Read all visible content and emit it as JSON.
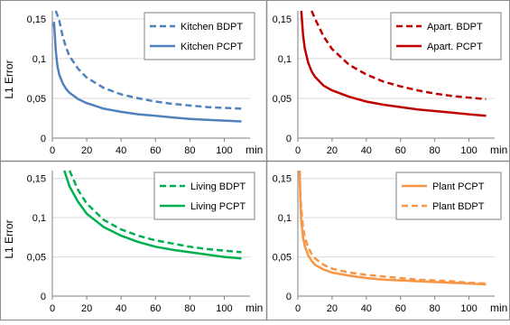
{
  "figure": {
    "ylabel": "L1 Error",
    "xunit": "min"
  },
  "chart_data": [
    {
      "type": "line",
      "id": "kitchen",
      "xlim": [
        0,
        115
      ],
      "ylim": [
        0,
        0.16
      ],
      "xticks": [
        "0",
        "20",
        "40",
        "60",
        "80",
        "100"
      ],
      "yticks": [
        "0",
        "0,05",
        "0,1",
        "0,15"
      ],
      "ytick_values": [
        0,
        0.05,
        0.1,
        0.15
      ],
      "xtick_values": [
        0,
        20,
        40,
        60,
        80,
        100
      ],
      "ylabel": "L1 Error",
      "xlabel": "min",
      "legend": "top-right",
      "grid": "horizontal",
      "series": [
        {
          "name": "Kitchen BDPT",
          "color": "#4f81bd",
          "dash": "dashed",
          "x": [
            2,
            4,
            6,
            8,
            10,
            15,
            20,
            30,
            40,
            50,
            60,
            70,
            80,
            90,
            100,
            110
          ],
          "y": [
            0.16,
            0.148,
            0.128,
            0.114,
            0.103,
            0.087,
            0.076,
            0.063,
            0.055,
            0.05,
            0.046,
            0.043,
            0.041,
            0.039,
            0.038,
            0.037
          ]
        },
        {
          "name": "Kitchen PCPT",
          "color": "#4f81bd",
          "dash": "solid",
          "x": [
            0.5,
            1,
            2,
            3,
            4,
            6,
            8,
            10,
            15,
            20,
            30,
            40,
            50,
            60,
            70,
            80,
            90,
            100,
            110
          ],
          "y": [
            0.14,
            0.145,
            0.11,
            0.09,
            0.08,
            0.069,
            0.062,
            0.057,
            0.049,
            0.044,
            0.037,
            0.033,
            0.03,
            0.028,
            0.026,
            0.024,
            0.023,
            0.022,
            0.021
          ]
        }
      ]
    },
    {
      "type": "line",
      "id": "apartment",
      "xlim": [
        0,
        115
      ],
      "ylim": [
        0,
        0.16
      ],
      "xticks": [
        "0",
        "20",
        "40",
        "60",
        "80",
        "100"
      ],
      "yticks": [
        "0",
        "0,05",
        "0,1",
        "0,15"
      ],
      "ytick_values": [
        0,
        0.05,
        0.1,
        0.15
      ],
      "xtick_values": [
        0,
        20,
        40,
        60,
        80,
        100
      ],
      "xlabel": "min",
      "legend": "top-right",
      "grid": "horizontal",
      "series": [
        {
          "name": "Apart. BDPT",
          "color": "#c00000",
          "dash": "dashed",
          "x": [
            8,
            10,
            15,
            20,
            30,
            40,
            50,
            60,
            70,
            80,
            90,
            100,
            110
          ],
          "y": [
            0.16,
            0.15,
            0.128,
            0.112,
            0.092,
            0.08,
            0.071,
            0.065,
            0.06,
            0.056,
            0.053,
            0.051,
            0.049
          ]
        },
        {
          "name": "Apart. PCPT",
          "color": "#c00000",
          "dash": "solid",
          "x": [
            2,
            3,
            4,
            6,
            8,
            10,
            15,
            20,
            30,
            40,
            50,
            60,
            70,
            80,
            90,
            100,
            110
          ],
          "y": [
            0.16,
            0.13,
            0.113,
            0.095,
            0.084,
            0.077,
            0.066,
            0.06,
            0.052,
            0.046,
            0.042,
            0.039,
            0.036,
            0.034,
            0.032,
            0.03,
            0.028
          ]
        }
      ]
    },
    {
      "type": "line",
      "id": "living",
      "xlim": [
        0,
        115
      ],
      "ylim": [
        0,
        0.16
      ],
      "xticks": [
        "0",
        "20",
        "40",
        "60",
        "80",
        "100"
      ],
      "yticks": [
        "0",
        "0,05",
        "0,1",
        "0,15"
      ],
      "ytick_values": [
        0,
        0.05,
        0.1,
        0.15
      ],
      "xtick_values": [
        0,
        20,
        40,
        60,
        80,
        100
      ],
      "ylabel": "L1 Error",
      "xlabel": "min",
      "legend": "top-right",
      "grid": "horizontal",
      "series": [
        {
          "name": "Living BDPT",
          "color": "#00b050",
          "dash": "dashed",
          "x": [
            10,
            15,
            20,
            30,
            40,
            50,
            60,
            70,
            80,
            90,
            100,
            110
          ],
          "y": [
            0.16,
            0.135,
            0.118,
            0.097,
            0.085,
            0.077,
            0.071,
            0.067,
            0.063,
            0.06,
            0.058,
            0.056
          ]
        },
        {
          "name": "Living PCPT",
          "color": "#00b050",
          "dash": "solid",
          "x": [
            7,
            10,
            15,
            20,
            30,
            40,
            50,
            60,
            70,
            80,
            90,
            100,
            110
          ],
          "y": [
            0.16,
            0.14,
            0.12,
            0.105,
            0.088,
            0.077,
            0.069,
            0.063,
            0.059,
            0.056,
            0.053,
            0.05,
            0.048
          ]
        }
      ]
    },
    {
      "type": "line",
      "id": "plant",
      "xlim": [
        0,
        115
      ],
      "ylim": [
        0,
        0.16
      ],
      "xticks": [
        "0",
        "20",
        "40",
        "60",
        "80",
        "100"
      ],
      "yticks": [
        "0",
        "0,05",
        "0,1",
        "0,15"
      ],
      "ytick_values": [
        0,
        0.05,
        0.1,
        0.15
      ],
      "xtick_values": [
        0,
        20,
        40,
        60,
        80,
        100
      ],
      "xlabel": "min",
      "legend": "top-right",
      "grid": "horizontal",
      "series": [
        {
          "name": "Plant PCPT",
          "color": "#f79646",
          "dash": "solid",
          "x": [
            1,
            1.5,
            2,
            3,
            4,
            6,
            8,
            10,
            15,
            20,
            30,
            40,
            50,
            60,
            70,
            80,
            90,
            100,
            110
          ],
          "y": [
            0.16,
            0.12,
            0.095,
            0.075,
            0.064,
            0.052,
            0.045,
            0.04,
            0.034,
            0.03,
            0.026,
            0.023,
            0.021,
            0.02,
            0.019,
            0.018,
            0.017,
            0.016,
            0.015
          ]
        },
        {
          "name": "Plant BDPT",
          "color": "#f79646",
          "dash": "dashed",
          "x": [
            1,
            1.5,
            2,
            3,
            4,
            6,
            8,
            10,
            15,
            20,
            30,
            40,
            50,
            60,
            70,
            80,
            90,
            100,
            110
          ],
          "y": [
            0.16,
            0.13,
            0.11,
            0.088,
            0.075,
            0.062,
            0.054,
            0.048,
            0.04,
            0.035,
            0.03,
            0.027,
            0.025,
            0.023,
            0.021,
            0.02,
            0.019,
            0.017,
            0.016
          ]
        }
      ]
    }
  ]
}
